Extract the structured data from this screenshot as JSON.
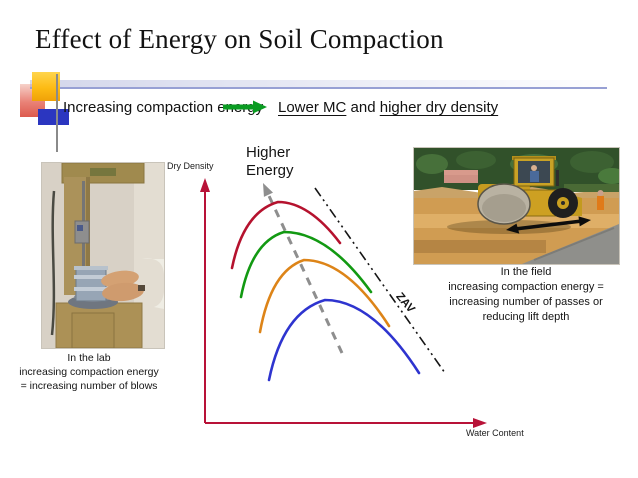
{
  "slide": {
    "title": "Effect of Energy on Soil Compaction",
    "energy_statement": {
      "left": "Increasing compaction energy",
      "arrow_icon": "green-right-arrow",
      "result_underlined_1": "Lower MC",
      "result_middle": " and ",
      "result_underlined_2": "higher dry density"
    }
  },
  "chart_data": {
    "type": "line",
    "title": "",
    "xlabel": "Water Content",
    "ylabel": "Dry Density",
    "annotation_higher_energy": "Higher\nEnergy",
    "annotation_zav": "ZAV",
    "axes": {
      "color": "#b81238",
      "origin": [
        45,
        283
      ],
      "y_arrow_tip": [
        45,
        38
      ],
      "x_arrow_tip": [
        327,
        283
      ]
    },
    "series": [
      {
        "name": "energy-4-highest",
        "color": "#b5122e",
        "start": [
          72,
          128
        ],
        "peak": [
          118,
          62
        ],
        "end": [
          180,
          103
        ]
      },
      {
        "name": "energy-3",
        "color": "#129912",
        "start": [
          81,
          157
        ],
        "peak": [
          124,
          92
        ],
        "end": [
          211,
          152
        ]
      },
      {
        "name": "energy-2",
        "color": "#dd8418",
        "start": [
          100,
          192
        ],
        "peak": [
          144,
          120
        ],
        "end": [
          229,
          186
        ]
      },
      {
        "name": "energy-1-lowest",
        "color": "#2e34cf",
        "start": [
          109,
          240
        ],
        "peak": [
          165,
          160
        ],
        "end": [
          259,
          233
        ]
      }
    ],
    "energy_trend_arrow": {
      "color": "#8e8e8e",
      "from": [
        182,
        213
      ],
      "to": [
        103,
        43
      ]
    },
    "zav_line": {
      "color": "#151515",
      "from": [
        155,
        48
      ],
      "to": [
        285,
        233
      ]
    }
  },
  "photos": {
    "lab": {
      "caption_lines": [
        "In the lab",
        "increasing compaction energy",
        "= increasing number of blows"
      ]
    },
    "field": {
      "caption_lines": [
        "In the field",
        "increasing compaction energy =",
        "increasing number of passes or",
        "reducing lift depth"
      ]
    }
  },
  "colors": {
    "title_text": "#121212",
    "accent_rule": "#97a0d4",
    "ornament_yellow": "#fdbb14",
    "ornament_pink": "#e98277",
    "ornament_blue": "#2b36c0",
    "green_arrow": "#0a9c22",
    "axis_crimson": "#b81238"
  }
}
